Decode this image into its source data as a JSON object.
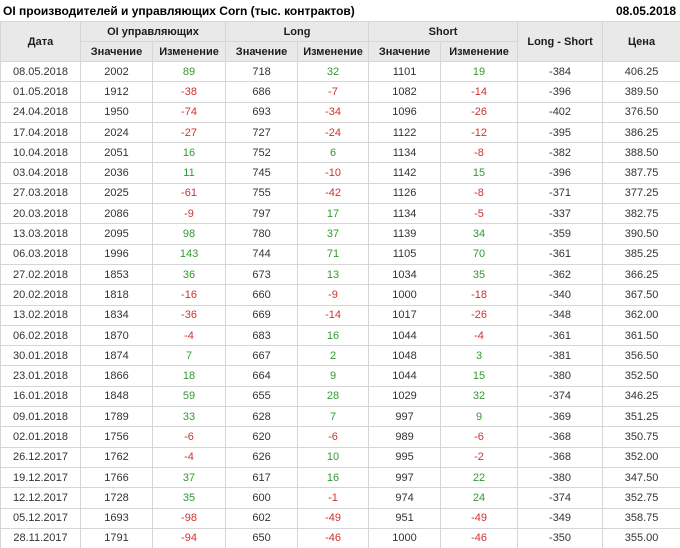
{
  "title": "OI производителей и управляющих Corn (тыс. контрактов)",
  "report_date": "08.05.2018",
  "colors": {
    "positive": "#339933",
    "negative": "#cc3333",
    "neutral": "#333333",
    "header_bg": "#e9e9e9",
    "grid_line": "#d6d6d6",
    "header_divider": "#9f9f9f"
  },
  "table": {
    "columns": {
      "date": "Дата",
      "oi_group": "OI управляющих",
      "long_group": "Long",
      "short_group": "Short",
      "value": "Значение",
      "change": "Изменение",
      "long_short": "Long - Short",
      "price": "Цена"
    },
    "rows": [
      [
        "08.05.2018",
        "2002",
        "89",
        "718",
        "32",
        "1101",
        "19",
        "-384",
        "406.25"
      ],
      [
        "01.05.2018",
        "1912",
        "-38",
        "686",
        "-7",
        "1082",
        "-14",
        "-396",
        "389.50"
      ],
      [
        "24.04.2018",
        "1950",
        "-74",
        "693",
        "-34",
        "1096",
        "-26",
        "-402",
        "376.50"
      ],
      [
        "17.04.2018",
        "2024",
        "-27",
        "727",
        "-24",
        "1122",
        "-12",
        "-395",
        "386.25"
      ],
      [
        "10.04.2018",
        "2051",
        "16",
        "752",
        "6",
        "1134",
        "-8",
        "-382",
        "388.50"
      ],
      [
        "03.04.2018",
        "2036",
        "11",
        "745",
        "-10",
        "1142",
        "15",
        "-396",
        "387.75"
      ],
      [
        "27.03.2018",
        "2025",
        "-61",
        "755",
        "-42",
        "1126",
        "-8",
        "-371",
        "377.25"
      ],
      [
        "20.03.2018",
        "2086",
        "-9",
        "797",
        "17",
        "1134",
        "-5",
        "-337",
        "382.75"
      ],
      [
        "13.03.2018",
        "2095",
        "98",
        "780",
        "37",
        "1139",
        "34",
        "-359",
        "390.50"
      ],
      [
        "06.03.2018",
        "1996",
        "143",
        "744",
        "71",
        "1105",
        "70",
        "-361",
        "385.25"
      ],
      [
        "27.02.2018",
        "1853",
        "36",
        "673",
        "13",
        "1034",
        "35",
        "-362",
        "366.25"
      ],
      [
        "20.02.2018",
        "1818",
        "-16",
        "660",
        "-9",
        "1000",
        "-18",
        "-340",
        "367.50"
      ],
      [
        "13.02.2018",
        "1834",
        "-36",
        "669",
        "-14",
        "1017",
        "-26",
        "-348",
        "362.00"
      ],
      [
        "06.02.2018",
        "1870",
        "-4",
        "683",
        "16",
        "1044",
        "-4",
        "-361",
        "361.50"
      ],
      [
        "30.01.2018",
        "1874",
        "7",
        "667",
        "2",
        "1048",
        "3",
        "-381",
        "356.50"
      ],
      [
        "23.01.2018",
        "1866",
        "18",
        "664",
        "9",
        "1044",
        "15",
        "-380",
        "352.50"
      ],
      [
        "16.01.2018",
        "1848",
        "59",
        "655",
        "28",
        "1029",
        "32",
        "-374",
        "346.25"
      ],
      [
        "09.01.2018",
        "1789",
        "33",
        "628",
        "7",
        "997",
        "9",
        "-369",
        "351.25"
      ],
      [
        "02.01.2018",
        "1756",
        "-6",
        "620",
        "-6",
        "989",
        "-6",
        "-368",
        "350.75"
      ],
      [
        "26.12.2017",
        "1762",
        "-4",
        "626",
        "10",
        "995",
        "-2",
        "-368",
        "352.00"
      ],
      [
        "19.12.2017",
        "1766",
        "37",
        "617",
        "16",
        "997",
        "22",
        "-380",
        "347.50"
      ],
      [
        "12.12.2017",
        "1728",
        "35",
        "600",
        "-1",
        "974",
        "24",
        "-374",
        "352.75"
      ],
      [
        "05.12.2017",
        "1693",
        "-98",
        "602",
        "-49",
        "951",
        "-49",
        "-349",
        "358.75"
      ],
      [
        "28.11.2017",
        "1791",
        "-94",
        "650",
        "-46",
        "1000",
        "-46",
        "-350",
        "355.00"
      ]
    ]
  }
}
